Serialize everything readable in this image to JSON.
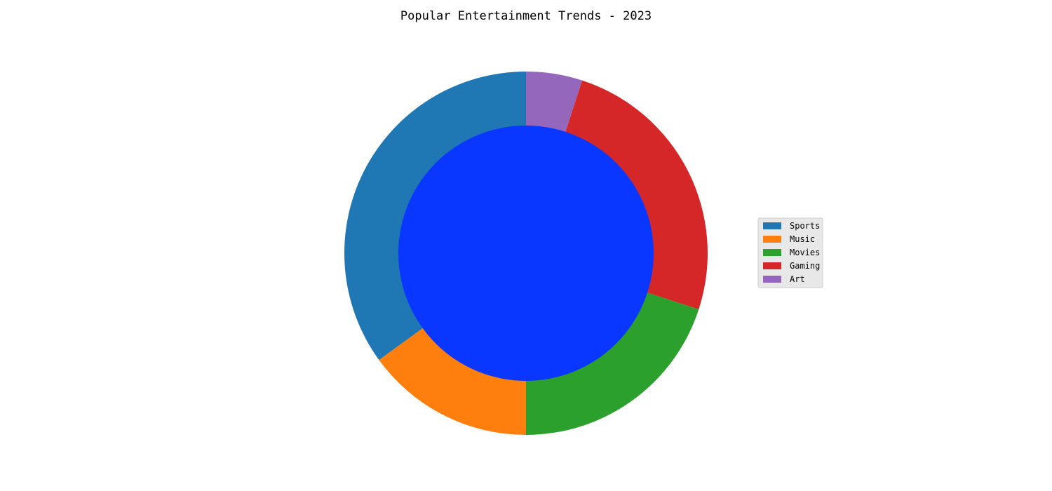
{
  "chart_data": {
    "type": "pie",
    "style": "donut",
    "title": "Popular Entertainment Trends - 2023",
    "start": "top",
    "direction": "counterclockwise",
    "slices": [
      {
        "label": "Sports",
        "value": 35,
        "color": "#1f77b4"
      },
      {
        "label": "Music",
        "value": 15,
        "color": "#ff7f0e"
      },
      {
        "label": "Movies",
        "value": 20,
        "color": "#2ca02c"
      },
      {
        "label": "Gaming",
        "value": 25,
        "color": "#d62728"
      },
      {
        "label": "Art",
        "value": 5,
        "color": "#9467bd"
      }
    ],
    "center_color": "#0a37ff",
    "legend_position": "right"
  }
}
